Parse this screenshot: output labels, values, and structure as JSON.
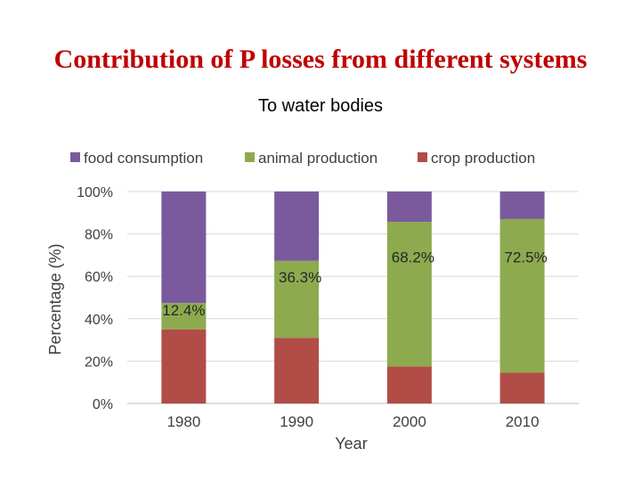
{
  "slide": {
    "title": "Contribution of P losses from different systems",
    "subtitle": "To water bodies"
  },
  "colors": {
    "title": "#c00000",
    "food consumption": "#7a5a9c",
    "animal production": "#8eaa4f",
    "crop production": "#b24c47",
    "gridline": "#d9d9d9"
  },
  "chart_data": {
    "type": "bar",
    "stacked": true,
    "title": "",
    "categories": [
      "1980",
      "1990",
      "2000",
      "2010"
    ],
    "series": [
      {
        "name": "crop production",
        "values": [
          35,
          31,
          17.5,
          14.5
        ]
      },
      {
        "name": "animal production",
        "values": [
          12.4,
          36.3,
          68.2,
          72.5
        ]
      },
      {
        "name": "food consumption",
        "values": [
          52.6,
          32.7,
          14.3,
          13.0
        ]
      }
    ],
    "legend_order": [
      "food consumption",
      "animal production",
      "crop production"
    ],
    "legend_position": "top",
    "data_labels": [
      "12.4%",
      "36.3%",
      "68.2%",
      "72.5%"
    ],
    "data_label_series": "animal production",
    "xlabel": "Year",
    "ylabel": "Percentage (%)",
    "ylim": [
      0,
      100
    ],
    "yticks": [
      0,
      20,
      40,
      60,
      80,
      100
    ],
    "ytick_labels": [
      "0%",
      "20%",
      "40%",
      "60%",
      "80%",
      "100%"
    ],
    "grid": true
  }
}
